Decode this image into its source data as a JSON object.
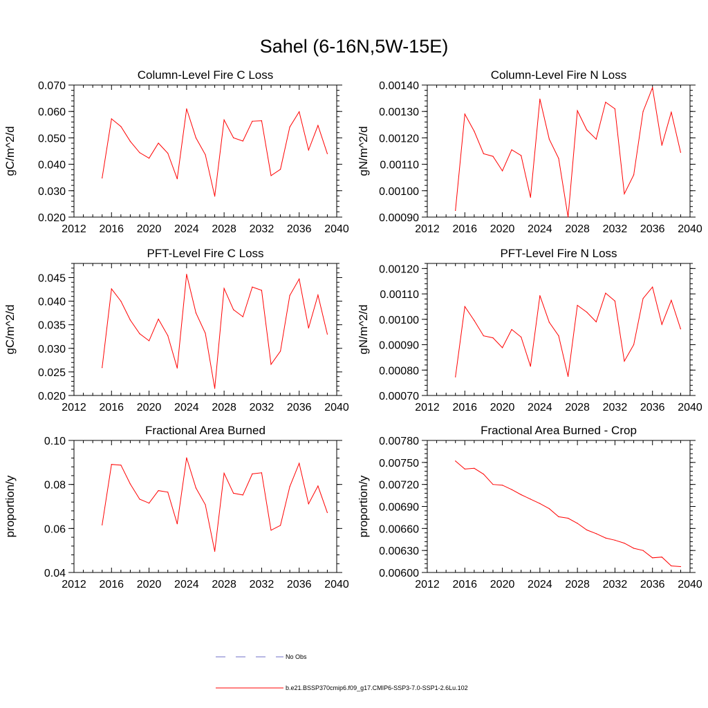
{
  "figure": {
    "title": "Sahel (6-16N,5W-15E)"
  },
  "legend": {
    "obs_label": "No Obs",
    "model_label": "b.e21.BSSP370cmip6.f09_g17.CMIP6-SSP3-7.0-SSP1-2.6Lu.102",
    "obs_color": "#6f6fc7",
    "model_color": "#ff0000"
  },
  "chart_data": [
    {
      "type": "line",
      "title": "Column-Level Fire C Loss",
      "ylabel": "gC/m^2/d",
      "xlabel": "",
      "xlim": [
        2012,
        2040
      ],
      "ylim": [
        0.02,
        0.07
      ],
      "xticks": [
        "2012",
        "2016",
        "2020",
        "2024",
        "2028",
        "2032",
        "2036",
        "2040"
      ],
      "yticks": [
        "0.020",
        "0.030",
        "0.040",
        "0.050",
        "0.060",
        "0.070"
      ],
      "x": [
        2015,
        2016,
        2017,
        2018,
        2019,
        2020,
        2021,
        2022,
        2023,
        2024,
        2025,
        2026,
        2027,
        2028,
        2029,
        2030,
        2031,
        2032,
        2033,
        2034,
        2035,
        2036,
        2037,
        2038,
        2039
      ],
      "series": [
        {
          "name": "b.e21.BSSP370cmip6.f09_g17.CMIP6-SSP3-7.0-SSP1-2.6Lu.102",
          "color": "#ff0000",
          "values": [
            0.0348,
            0.0572,
            0.0543,
            0.0487,
            0.0444,
            0.0423,
            0.048,
            0.0442,
            0.0345,
            0.061,
            0.05,
            0.0436,
            0.0279,
            0.0568,
            0.05,
            0.0488,
            0.0563,
            0.0565,
            0.0357,
            0.0381,
            0.0541,
            0.0599,
            0.0454,
            0.0547,
            0.044
          ]
        }
      ]
    },
    {
      "type": "line",
      "title": "Column-Level Fire N Loss",
      "ylabel": "gN/m^2/d",
      "xlabel": "",
      "xlim": [
        2012,
        2040
      ],
      "ylim": [
        0.0009,
        0.0014
      ],
      "xticks": [
        "2012",
        "2016",
        "2020",
        "2024",
        "2028",
        "2032",
        "2036",
        "2040"
      ],
      "yticks": [
        "0.00090",
        "0.00100",
        "0.00110",
        "0.00120",
        "0.00130",
        "0.00140"
      ],
      "x": [
        2015,
        2016,
        2017,
        2018,
        2019,
        2020,
        2021,
        2022,
        2023,
        2024,
        2025,
        2026,
        2027,
        2028,
        2029,
        2030,
        2031,
        2032,
        2033,
        2034,
        2035,
        2036,
        2037,
        2038,
        2039
      ],
      "series": [
        {
          "name": "b.e21.BSSP370cmip6.f09_g17.CMIP6-SSP3-7.0-SSP1-2.6Lu.102",
          "color": "#ff0000",
          "values": [
            0.000925,
            0.00129,
            0.001225,
            0.00114,
            0.00113,
            0.001075,
            0.001155,
            0.001133,
            0.000975,
            0.001347,
            0.001195,
            0.001122,
            0.0009,
            0.001303,
            0.00123,
            0.001195,
            0.001335,
            0.00131,
            0.000988,
            0.00106,
            0.0013,
            0.00139,
            0.001172,
            0.001297,
            0.001145
          ]
        }
      ]
    },
    {
      "type": "line",
      "title": "PFT-Level Fire C Loss",
      "ylabel": "gC/m^2/d",
      "xlabel": "",
      "xlim": [
        2012,
        2040
      ],
      "ylim": [
        0.02,
        0.048
      ],
      "xticks": [
        "2012",
        "2016",
        "2020",
        "2024",
        "2028",
        "2032",
        "2036",
        "2040"
      ],
      "yticks": [
        "0.020",
        "0.025",
        "0.030",
        "0.035",
        "0.040",
        "0.045"
      ],
      "x": [
        2015,
        2016,
        2017,
        2018,
        2019,
        2020,
        2021,
        2022,
        2023,
        2024,
        2025,
        2026,
        2027,
        2028,
        2029,
        2030,
        2031,
        2032,
        2033,
        2034,
        2035,
        2036,
        2037,
        2038,
        2039
      ],
      "series": [
        {
          "name": "b.e21.BSSP370cmip6.f09_g17.CMIP6-SSP3-7.0-SSP1-2.6Lu.102",
          "color": "#ff0000",
          "values": [
            0.0259,
            0.0426,
            0.04,
            0.036,
            0.0331,
            0.0316,
            0.0362,
            0.0327,
            0.0258,
            0.0457,
            0.0375,
            0.0332,
            0.0215,
            0.0427,
            0.0382,
            0.0367,
            0.043,
            0.0423,
            0.0266,
            0.0294,
            0.0412,
            0.0447,
            0.0343,
            0.0413,
            0.033
          ]
        }
      ]
    },
    {
      "type": "line",
      "title": "PFT-Level Fire N Loss",
      "ylabel": "gN/m^2/d",
      "xlabel": "",
      "xlim": [
        2012,
        2040
      ],
      "ylim": [
        0.0007,
        0.00122
      ],
      "xticks": [
        "2012",
        "2016",
        "2020",
        "2024",
        "2028",
        "2032",
        "2036",
        "2040"
      ],
      "yticks": [
        "0.00070",
        "0.00080",
        "0.00090",
        "0.00100",
        "0.00110",
        "0.00120"
      ],
      "x": [
        2015,
        2016,
        2017,
        2018,
        2019,
        2020,
        2021,
        2022,
        2023,
        2024,
        2025,
        2026,
        2027,
        2028,
        2029,
        2030,
        2031,
        2032,
        2033,
        2034,
        2035,
        2036,
        2037,
        2038,
        2039
      ],
      "series": [
        {
          "name": "b.e21.BSSP370cmip6.f09_g17.CMIP6-SSP3-7.0-SSP1-2.6Lu.102",
          "color": "#ff0000",
          "values": [
            0.000773,
            0.00105,
            0.000995,
            0.000935,
            0.000927,
            0.000888,
            0.00096,
            0.00093,
            0.000815,
            0.001093,
            0.000988,
            0.000935,
            0.000775,
            0.001055,
            0.001028,
            0.00099,
            0.001103,
            0.001072,
            0.000835,
            0.0009,
            0.001082,
            0.001127,
            0.00098,
            0.001075,
            0.000962
          ]
        }
      ]
    },
    {
      "type": "line",
      "title": "Fractional Area Burned",
      "ylabel": "proportion/y",
      "xlabel": "",
      "xlim": [
        2012,
        2040
      ],
      "ylim": [
        0.04,
        0.1
      ],
      "xticks": [
        "2012",
        "2016",
        "2020",
        "2024",
        "2028",
        "2032",
        "2036",
        "2040"
      ],
      "yticks": [
        "0.04",
        "0.06",
        "0.08",
        "0.10"
      ],
      "x": [
        2015,
        2016,
        2017,
        2018,
        2019,
        2020,
        2021,
        2022,
        2023,
        2024,
        2025,
        2026,
        2027,
        2028,
        2029,
        2030,
        2031,
        2032,
        2033,
        2034,
        2035,
        2036,
        2037,
        2038,
        2039
      ],
      "series": [
        {
          "name": "b.e21.BSSP370cmip6.f09_g17.CMIP6-SSP3-7.0-SSP1-2.6Lu.102",
          "color": "#ff0000",
          "values": [
            0.0616,
            0.0891,
            0.0888,
            0.0802,
            0.0733,
            0.0715,
            0.0772,
            0.0765,
            0.0621,
            0.0921,
            0.0784,
            0.0708,
            0.0496,
            0.0851,
            0.076,
            0.0752,
            0.0848,
            0.0853,
            0.0592,
            0.0614,
            0.079,
            0.0896,
            0.0712,
            0.0793,
            0.0672
          ]
        }
      ]
    },
    {
      "type": "line",
      "title": "Fractional Area Burned - Crop",
      "ylabel": "proportion/y",
      "xlabel": "",
      "xlim": [
        2012,
        2040
      ],
      "ylim": [
        0.006,
        0.0078
      ],
      "xticks": [
        "2012",
        "2016",
        "2020",
        "2024",
        "2028",
        "2032",
        "2036",
        "2040"
      ],
      "yticks": [
        "0.00600",
        "0.00630",
        "0.00660",
        "0.00690",
        "0.00720",
        "0.00750",
        "0.00780"
      ],
      "x": [
        2015,
        2016,
        2017,
        2018,
        2019,
        2020,
        2021,
        2022,
        2023,
        2024,
        2025,
        2026,
        2027,
        2028,
        2029,
        2030,
        2031,
        2032,
        2033,
        2034,
        2035,
        2036,
        2037,
        2038,
        2039
      ],
      "series": [
        {
          "name": "b.e21.BSSP370cmip6.f09_g17.CMIP6-SSP3-7.0-SSP1-2.6Lu.102",
          "color": "#ff0000",
          "values": [
            0.00752,
            0.00741,
            0.00742,
            0.00734,
            0.0072,
            0.00719,
            0.00713,
            0.00706,
            0.007,
            0.00694,
            0.00687,
            0.00676,
            0.00674,
            0.00667,
            0.00658,
            0.00653,
            0.00647,
            0.00644,
            0.0064,
            0.00633,
            0.0063,
            0.0062,
            0.00621,
            0.00609,
            0.00608
          ]
        }
      ]
    }
  ]
}
